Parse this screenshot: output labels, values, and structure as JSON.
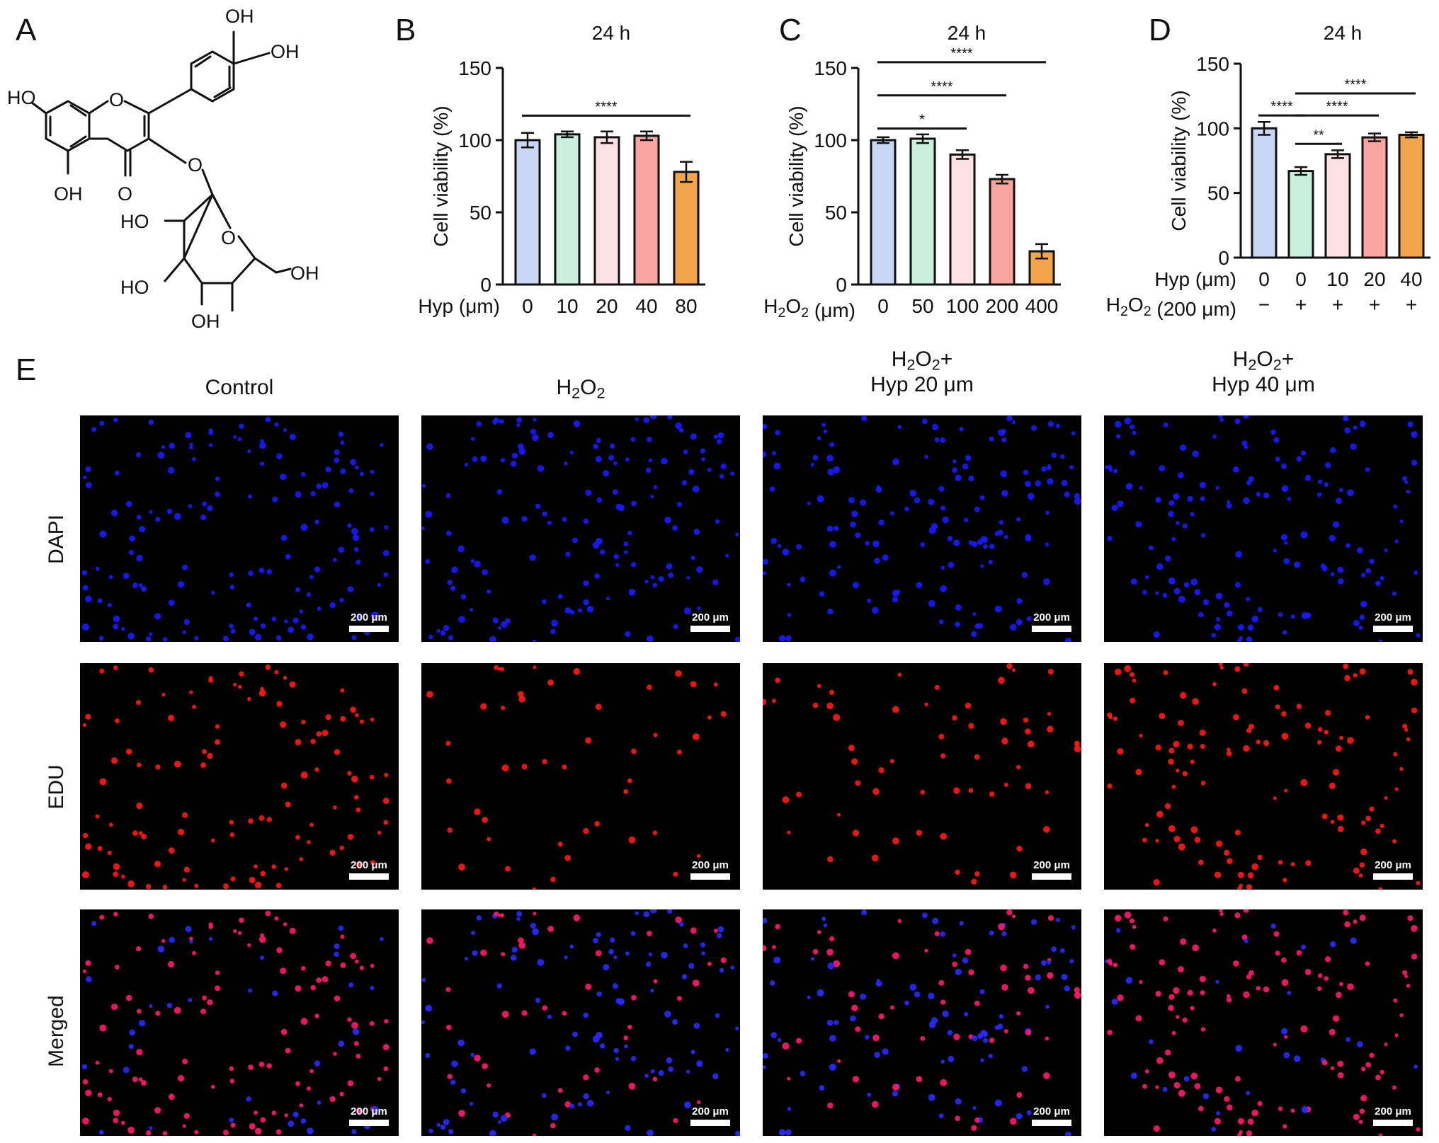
{
  "panel_labels": {
    "A": "A",
    "B": "B",
    "C": "C",
    "D": "D",
    "E": "E"
  },
  "structure": {
    "labels": [
      "OH",
      "OH",
      "HO",
      "O",
      "O",
      "OH",
      "O",
      "HO",
      "O",
      "OH",
      "HO",
      "OH"
    ]
  },
  "chart_data": [
    {
      "id": "B",
      "type": "bar",
      "title": "24 h",
      "ylabel": "Cell viability (%)",
      "xlabel_rows": [
        "Hyp (μm)"
      ],
      "categories": [
        "0",
        "10",
        "20",
        "40",
        "80"
      ],
      "values": [
        100,
        104,
        102,
        103,
        78
      ],
      "errors": [
        5,
        2,
        4,
        3,
        7
      ],
      "ylim": [
        0,
        150
      ],
      "yticks": [
        0,
        50,
        100,
        150
      ],
      "colors": [
        "#c8d7f4",
        "#c9f0dc",
        "#fde0e3",
        "#f9a6a3",
        "#f4a44c"
      ],
      "significance": [
        {
          "from": 0,
          "to": 4,
          "level": 0,
          "label": "****"
        }
      ]
    },
    {
      "id": "C",
      "type": "bar",
      "title": "24 h",
      "ylabel": "Cell viability (%)",
      "xlabel_rows": [
        "H2O2 (μm)"
      ],
      "categories": [
        "0",
        "50",
        "100",
        "200",
        "400"
      ],
      "values": [
        100,
        101,
        90,
        73,
        23
      ],
      "errors": [
        2,
        3,
        3,
        3,
        5
      ],
      "ylim": [
        0,
        150
      ],
      "yticks": [
        0,
        50,
        100,
        150
      ],
      "colors": [
        "#c8d7f4",
        "#c9f0dc",
        "#fde0e3",
        "#f9a6a3",
        "#f4a44c"
      ],
      "significance": [
        {
          "from": 0,
          "to": 2,
          "level": 0,
          "label": "*"
        },
        {
          "from": 0,
          "to": 3,
          "level": 1,
          "label": "****"
        },
        {
          "from": 0,
          "to": 4,
          "level": 2,
          "label": "****"
        }
      ]
    },
    {
      "id": "D",
      "type": "bar",
      "title": "24 h",
      "ylabel": "Cell viability (%)",
      "xlabel_rows": [
        "Hyp (μm)",
        "H2O2 (200 μm)"
      ],
      "categories": [
        "0",
        "0",
        "10",
        "20",
        "40"
      ],
      "second_row": [
        "−",
        "+",
        "+",
        "+",
        "+"
      ],
      "values": [
        100,
        67,
        80,
        93,
        95
      ],
      "errors": [
        5,
        3,
        3,
        3,
        2
      ],
      "ylim": [
        0,
        150
      ],
      "yticks": [
        0,
        50,
        100,
        150
      ],
      "colors": [
        "#c8d7f4",
        "#c9f0dc",
        "#fde0e3",
        "#f9a6a3",
        "#f4a44c"
      ],
      "significance": [
        {
          "from": 1,
          "to": 2,
          "level": 0,
          "label": "**"
        },
        {
          "from": 0,
          "to": 1,
          "level": 1,
          "label": "****"
        },
        {
          "from": 1,
          "to": 3,
          "level": 1,
          "label": "****"
        },
        {
          "from": 1,
          "to": 4,
          "level": 2,
          "label": "****"
        }
      ]
    }
  ],
  "microscopy": {
    "columns": [
      {
        "line1": "Control",
        "line2": ""
      },
      {
        "line1": "H2O2",
        "line2": ""
      },
      {
        "line1": "H2O2+",
        "line2": "Hyp 20 μm"
      },
      {
        "line1": "H2O2+",
        "line2": "Hyp 40 μm"
      }
    ],
    "rows": [
      "DAPI",
      "EDU",
      "Merged"
    ],
    "scale_bar": "200 μm",
    "stain_colors": {
      "DAPI": "#1a1aff",
      "EDU": "#ff1a1a",
      "Merged_red": "#ff1a6e",
      "Merged_blue": "#2a2aff"
    },
    "red_density": [
      0.75,
      0.3,
      0.4,
      0.8
    ]
  }
}
